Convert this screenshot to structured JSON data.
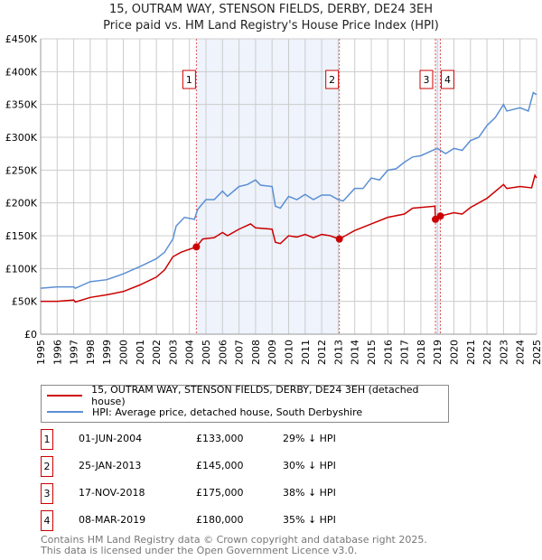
{
  "title": "15, OUTRAM WAY, STENSON FIELDS, DERBY, DE24 3EH",
  "subtitle": "Price paid vs. HM Land Registry's House Price Index (HPI)",
  "chart_data": {
    "type": "line",
    "xlim": [
      1995,
      2025
    ],
    "ylim": [
      0,
      450000
    ],
    "x_ticks": [
      "1995",
      "1996",
      "1997",
      "1998",
      "1999",
      "2000",
      "2001",
      "2002",
      "2003",
      "2004",
      "2005",
      "2006",
      "2007",
      "2008",
      "2009",
      "2010",
      "2011",
      "2012",
      "2013",
      "2014",
      "2015",
      "2016",
      "2017",
      "2018",
      "2019",
      "2020",
      "2021",
      "2022",
      "2023",
      "2024",
      "2025"
    ],
    "y_ticks": [
      {
        "v": 0,
        "l": "£0"
      },
      {
        "v": 50000,
        "l": "£50K"
      },
      {
        "v": 100000,
        "l": "£100K"
      },
      {
        "v": 150000,
        "l": "£150K"
      },
      {
        "v": 200000,
        "l": "£200K"
      },
      {
        "v": 250000,
        "l": "£250K"
      },
      {
        "v": 300000,
        "l": "£300K"
      },
      {
        "v": 350000,
        "l": "£350K"
      },
      {
        "v": 400000,
        "l": "£400K"
      },
      {
        "v": 450000,
        "l": "£450K"
      }
    ],
    "grid": true,
    "series": [
      {
        "name": "15, OUTRAM WAY, STENSON FIELDS, DERBY, DE24 3EH (detached house)",
        "color": "#cc0000",
        "x": [
          1995,
          1996,
          1997,
          1997.1,
          1998,
          1999,
          2000,
          2001,
          2002,
          2002.5,
          2003,
          2003.5,
          2004.42,
          2004.8,
          2005.5,
          2006,
          2006.3,
          2007,
          2007.7,
          2008,
          2009,
          2009.2,
          2009.5,
          2010,
          2010.5,
          2011,
          2011.5,
          2012,
          2012.5,
          2013.07,
          2014,
          2015,
          2016,
          2017,
          2017.5,
          2018.85,
          2018.88,
          2019.18,
          2020,
          2020.5,
          2021,
          2022,
          2023,
          2023.2,
          2024,
          2024.7,
          2024.9,
          2025
        ],
        "y": [
          50000,
          50000,
          52000,
          49000,
          56000,
          60000,
          65000,
          75000,
          87000,
          98000,
          118000,
          125000,
          133000,
          145000,
          147000,
          155000,
          150000,
          160000,
          168000,
          162000,
          160000,
          140000,
          138000,
          150000,
          148000,
          152000,
          147000,
          152000,
          150000,
          145000,
          158000,
          168000,
          178000,
          183000,
          192000,
          195000,
          175000,
          180000,
          185000,
          183000,
          193000,
          207000,
          228000,
          222000,
          225000,
          223000,
          242000,
          238000
        ]
      },
      {
        "name": "HPI: Average price, detached house, South Derbyshire",
        "color": "#5b8fd4",
        "x": [
          1995,
          1996,
          1997,
          1997.1,
          1998,
          1999,
          2000,
          2001,
          2002,
          2002.5,
          2003,
          2003.2,
          2003.7,
          2004.3,
          2004.5,
          2005,
          2005.5,
          2006,
          2006.3,
          2007,
          2007.5,
          2008,
          2008.3,
          2009,
          2009.2,
          2009.5,
          2010,
          2010.5,
          2011,
          2011.5,
          2012,
          2012.5,
          2013,
          2013.3,
          2014,
          2014.5,
          2015,
          2015.5,
          2016,
          2016.5,
          2017,
          2017.5,
          2018,
          2018.7,
          2019,
          2019.5,
          2020,
          2020.5,
          2021,
          2021.5,
          2022,
          2022.5,
          2023,
          2023.2,
          2024,
          2024.5,
          2024.8,
          2025
        ],
        "y": [
          70000,
          72000,
          72000,
          70000,
          80000,
          83000,
          92000,
          103000,
          115000,
          125000,
          145000,
          165000,
          178000,
          175000,
          190000,
          205000,
          205000,
          218000,
          210000,
          225000,
          228000,
          235000,
          227000,
          225000,
          195000,
          192000,
          210000,
          205000,
          213000,
          205000,
          212000,
          212000,
          205000,
          203000,
          222000,
          222000,
          238000,
          235000,
          250000,
          252000,
          262000,
          270000,
          272000,
          280000,
          283000,
          275000,
          283000,
          280000,
          295000,
          300000,
          318000,
          330000,
          350000,
          340000,
          345000,
          340000,
          368000,
          365000
        ]
      }
    ],
    "sales": [
      {
        "label": "1",
        "x": 2004.42,
        "y": 133000,
        "date": "01-JUN-2004",
        "price": "£133,000",
        "hpi": "29% ↓ HPI"
      },
      {
        "label": "2",
        "x": 2013.07,
        "y": 145000,
        "date": "25-JAN-2013",
        "price": "£145,000",
        "hpi": "30% ↓ HPI"
      },
      {
        "label": "3",
        "x": 2018.88,
        "y": 175000,
        "date": "17-NOV-2018",
        "price": "£175,000",
        "hpi": "38% ↓ HPI"
      },
      {
        "label": "4",
        "x": 2019.18,
        "y": 180000,
        "date": "08-MAR-2019",
        "price": "£180,000",
        "hpi": "35% ↓ HPI"
      }
    ],
    "shaded": [
      [
        2004.42,
        2013.07
      ],
      [
        2018.88,
        2019.18
      ]
    ]
  },
  "legend": {
    "red": "15, OUTRAM WAY, STENSON FIELDS, DERBY, DE24 3EH (detached house)",
    "blue": "HPI: Average price, detached house, South Derbyshire"
  },
  "footer": {
    "line1": "Contains HM Land Registry data © Crown copyright and database right 2025.",
    "line2": "This data is licensed under the Open Government Licence v3.0."
  }
}
